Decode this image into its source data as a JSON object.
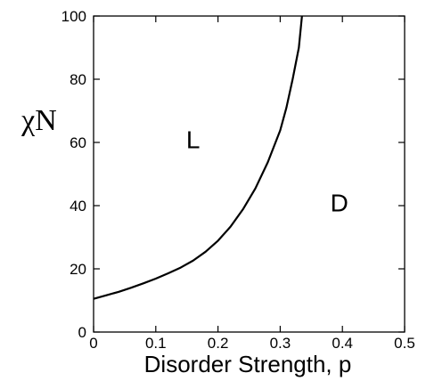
{
  "chart_data": {
    "type": "line",
    "xlabel": "Disorder Strength, p",
    "ylabel": "χN",
    "xlim": [
      0,
      0.5
    ],
    "ylim": [
      0,
      100
    ],
    "x_ticks": [
      "0",
      "0.1",
      "0.2",
      "0.3",
      "0.4",
      "0.5"
    ],
    "y_ticks": [
      "0",
      "20",
      "40",
      "60",
      "80",
      "100"
    ],
    "grid": false,
    "legend": "none",
    "series": [
      {
        "color": "#000000",
        "x": [
          0,
          0.02,
          0.04,
          0.06,
          0.08,
          0.1,
          0.12,
          0.14,
          0.16,
          0.18,
          0.2,
          0.22,
          0.24,
          0.26,
          0.28,
          0.3,
          0.31,
          0.32,
          0.33,
          0.335
        ],
        "y": [
          10.5,
          11.6,
          12.7,
          14,
          15.4,
          16.9,
          18.6,
          20.4,
          22.6,
          25.4,
          28.9,
          33.3,
          38.8,
          45.4,
          53.7,
          63.8,
          71,
          80,
          90,
          100
        ]
      }
    ],
    "annotations": [
      {
        "text": "L",
        "x": 0.16,
        "y": 61
      },
      {
        "text": "D",
        "x": 0.395,
        "y": 41
      }
    ]
  }
}
